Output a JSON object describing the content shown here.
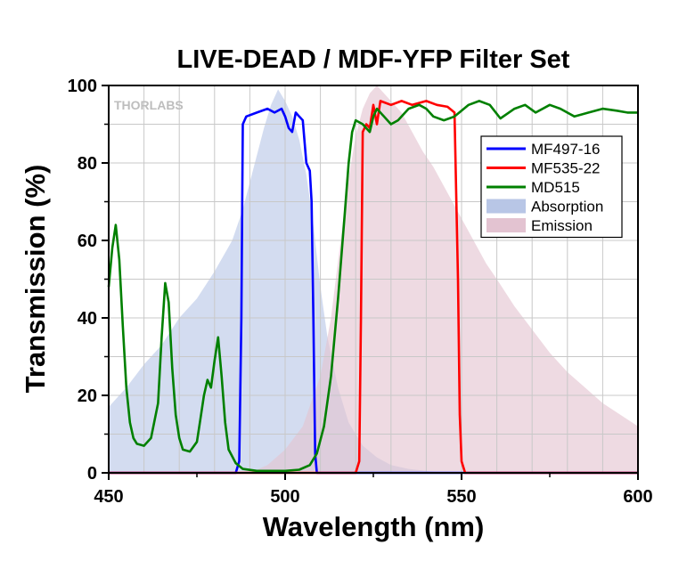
{
  "chart_data": {
    "type": "line",
    "title": "LIVE-DEAD / MDF-YFP Filter Set",
    "xlabel": "Wavelength (nm)",
    "ylabel": "Transmission (%)",
    "xlim": [
      450,
      600
    ],
    "ylim": [
      0,
      100
    ],
    "xticks": [
      "450",
      "500",
      "550",
      "600"
    ],
    "yticks": [
      "0",
      "20",
      "40",
      "60",
      "80",
      "100"
    ],
    "grid": true,
    "legend_position": "right",
    "watermark": "THORLABS",
    "series": [
      {
        "name": "MF497-16",
        "kind": "line",
        "color": "#0000ff",
        "points": [
          [
            450,
            0
          ],
          [
            486,
            0
          ],
          [
            487,
            3
          ],
          [
            487.6,
            40
          ],
          [
            488,
            90
          ],
          [
            489,
            92
          ],
          [
            492,
            93
          ],
          [
            495,
            94
          ],
          [
            497,
            93
          ],
          [
            499,
            94
          ],
          [
            500,
            92
          ],
          [
            501,
            89
          ],
          [
            502,
            88
          ],
          [
            503,
            93
          ],
          [
            504,
            92
          ],
          [
            505,
            91
          ],
          [
            506,
            80
          ],
          [
            507,
            78
          ],
          [
            507.5,
            70
          ],
          [
            508,
            40
          ],
          [
            508.5,
            5
          ],
          [
            509,
            0
          ],
          [
            600,
            0
          ]
        ]
      },
      {
        "name": "MF535-22",
        "kind": "line",
        "color": "#ff0000",
        "points": [
          [
            450,
            0
          ],
          [
            520,
            0
          ],
          [
            521,
            3
          ],
          [
            521.5,
            40
          ],
          [
            522,
            88
          ],
          [
            523,
            90
          ],
          [
            524,
            89
          ],
          [
            525,
            95
          ],
          [
            526,
            90
          ],
          [
            527,
            96
          ],
          [
            530,
            95
          ],
          [
            533,
            96
          ],
          [
            536,
            95
          ],
          [
            540,
            96
          ],
          [
            543,
            95
          ],
          [
            546,
            94.5
          ],
          [
            548,
            93
          ],
          [
            549,
            50
          ],
          [
            549.5,
            15
          ],
          [
            550,
            3
          ],
          [
            551,
            0
          ],
          [
            600,
            0
          ]
        ]
      },
      {
        "name": "MD515",
        "kind": "line",
        "color": "#008000",
        "points": [
          [
            450,
            48
          ],
          [
            451,
            58
          ],
          [
            452,
            64
          ],
          [
            453,
            55
          ],
          [
            454,
            38
          ],
          [
            455,
            22
          ],
          [
            456,
            13
          ],
          [
            457,
            9
          ],
          [
            458,
            7.5
          ],
          [
            460,
            7
          ],
          [
            462,
            9
          ],
          [
            464,
            18
          ],
          [
            465,
            35
          ],
          [
            466,
            49
          ],
          [
            467,
            44
          ],
          [
            468,
            27
          ],
          [
            469,
            15
          ],
          [
            470,
            9
          ],
          [
            471,
            6
          ],
          [
            473,
            5.5
          ],
          [
            475,
            8
          ],
          [
            476,
            14
          ],
          [
            477,
            20
          ],
          [
            478,
            24
          ],
          [
            479,
            22
          ],
          [
            480,
            29
          ],
          [
            481,
            35
          ],
          [
            482,
            25
          ],
          [
            483,
            13
          ],
          [
            484,
            6
          ],
          [
            486,
            2.5
          ],
          [
            488,
            1
          ],
          [
            492,
            0.5
          ],
          [
            500,
            0.5
          ],
          [
            504,
            0.8
          ],
          [
            507,
            2
          ],
          [
            509,
            5
          ],
          [
            511,
            12
          ],
          [
            513,
            25
          ],
          [
            515,
            45
          ],
          [
            517,
            68
          ],
          [
            518,
            80
          ],
          [
            519,
            88
          ],
          [
            520,
            91
          ],
          [
            522,
            90
          ],
          [
            524,
            88
          ],
          [
            525,
            92
          ],
          [
            526,
            94
          ],
          [
            528,
            92
          ],
          [
            530,
            90
          ],
          [
            532,
            91
          ],
          [
            535,
            94
          ],
          [
            538,
            95
          ],
          [
            540,
            94
          ],
          [
            542,
            92
          ],
          [
            545,
            91
          ],
          [
            548,
            92
          ],
          [
            552,
            95
          ],
          [
            555,
            96
          ],
          [
            558,
            95
          ],
          [
            561,
            91.5
          ],
          [
            565,
            94
          ],
          [
            568,
            95
          ],
          [
            571,
            93
          ],
          [
            575,
            95
          ],
          [
            578,
            94
          ],
          [
            582,
            92
          ],
          [
            586,
            93
          ],
          [
            590,
            94
          ],
          [
            594,
            93.5
          ],
          [
            597,
            93
          ],
          [
            600,
            93
          ]
        ]
      },
      {
        "name": "Absorption",
        "kind": "area",
        "color": "#b8c6e6",
        "points": [
          [
            450,
            17
          ],
          [
            455,
            22
          ],
          [
            460,
            28
          ],
          [
            465,
            33
          ],
          [
            470,
            40
          ],
          [
            475,
            45
          ],
          [
            480,
            52
          ],
          [
            485,
            60
          ],
          [
            488,
            68
          ],
          [
            490,
            75
          ],
          [
            492,
            82
          ],
          [
            494,
            89
          ],
          [
            496,
            95
          ],
          [
            498,
            99
          ],
          [
            500,
            96
          ],
          [
            502,
            92
          ],
          [
            504,
            86
          ],
          [
            506,
            77
          ],
          [
            508,
            64
          ],
          [
            510,
            48
          ],
          [
            512,
            35
          ],
          [
            515,
            22
          ],
          [
            518,
            13
          ],
          [
            522,
            7
          ],
          [
            526,
            4
          ],
          [
            530,
            2
          ],
          [
            535,
            1
          ],
          [
            540,
            0.5
          ],
          [
            545,
            0
          ],
          [
            600,
            0
          ]
        ]
      },
      {
        "name": "Emission",
        "kind": "area",
        "color": "#e3c3d1",
        "points": [
          [
            450,
            0
          ],
          [
            490,
            0
          ],
          [
            495,
            2
          ],
          [
            500,
            6
          ],
          [
            505,
            12
          ],
          [
            510,
            25
          ],
          [
            513,
            40
          ],
          [
            516,
            62
          ],
          [
            518,
            76
          ],
          [
            520,
            87
          ],
          [
            522,
            94
          ],
          [
            524,
            98
          ],
          [
            526,
            100
          ],
          [
            528,
            98
          ],
          [
            530,
            96
          ],
          [
            533,
            93
          ],
          [
            536,
            88
          ],
          [
            539,
            83
          ],
          [
            542,
            79
          ],
          [
            545,
            74
          ],
          [
            548,
            69
          ],
          [
            551,
            64
          ],
          [
            554,
            59
          ],
          [
            557,
            54
          ],
          [
            560,
            50
          ],
          [
            565,
            43
          ],
          [
            570,
            37
          ],
          [
            575,
            31
          ],
          [
            580,
            26
          ],
          [
            585,
            22
          ],
          [
            590,
            18
          ],
          [
            595,
            15
          ],
          [
            600,
            12
          ]
        ]
      }
    ]
  }
}
